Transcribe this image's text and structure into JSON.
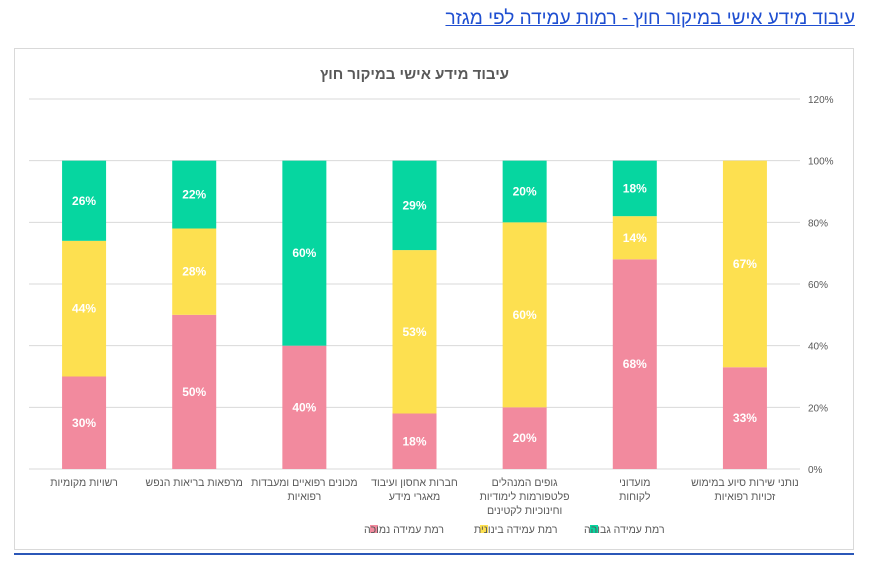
{
  "page": {
    "heading": "עיבוד מידע אישי במיקור חוץ - רמות עמידה לפי מגזר"
  },
  "colors": {
    "low": "#F28A9E",
    "medium": "#FDE050",
    "high": "#06D6A0",
    "heading": "#1F4FD1",
    "rule": "#2B57B8"
  },
  "chart_data": {
    "type": "bar",
    "stacked": true,
    "title": "עיבוד מידע אישי במיקור חוץ",
    "xlabel": "",
    "ylabel": "",
    "y_axis_position": "right",
    "ylim": [
      0,
      120
    ],
    "yticks": [
      0,
      20,
      40,
      60,
      80,
      100,
      120
    ],
    "ytick_labels": [
      "0%",
      "20%",
      "40%",
      "60%",
      "80%",
      "100%",
      "120%"
    ],
    "grid": true,
    "legend_position": "bottom",
    "categories": [
      [
        "רשויות מקומיות"
      ],
      [
        "מרפאות בריאות הנפש"
      ],
      [
        "מכונים רפואיים ומעבדות",
        "רפואיות"
      ],
      [
        "חברות אחסון ועיבוד",
        "מאגרי מידע"
      ],
      [
        "גופים המנהלים",
        "פלטפורמות לימודיות",
        "וחינוכיות לקטינים"
      ],
      [
        "מועדוני",
        "לקוחות"
      ],
      [
        "נותני שירות סיוע במימוש",
        "זכויות רפואיות"
      ]
    ],
    "series": [
      {
        "name": "רמת עמידה נמוכה",
        "color": "#F28A9E",
        "values": [
          30,
          50,
          40,
          18,
          20,
          68,
          33
        ],
        "labels": [
          "30%",
          "50%",
          "40%",
          "18%",
          "20%",
          "68%",
          "33%"
        ]
      },
      {
        "name": "רמת עמידה בינונית",
        "color": "#FDE050",
        "values": [
          44,
          28,
          0,
          53,
          60,
          14,
          67
        ],
        "labels": [
          "44%",
          "28%",
          "",
          "53%",
          "60%",
          "14%",
          "67%"
        ]
      },
      {
        "name": "רמת עמידה גבוהה",
        "color": "#06D6A0",
        "values": [
          26,
          22,
          60,
          29,
          20,
          18,
          0
        ],
        "labels": [
          "26%",
          "22%",
          "60%",
          "29%",
          "20%",
          "18%",
          ""
        ]
      }
    ],
    "legend_order": [
      0,
      1,
      2
    ]
  }
}
